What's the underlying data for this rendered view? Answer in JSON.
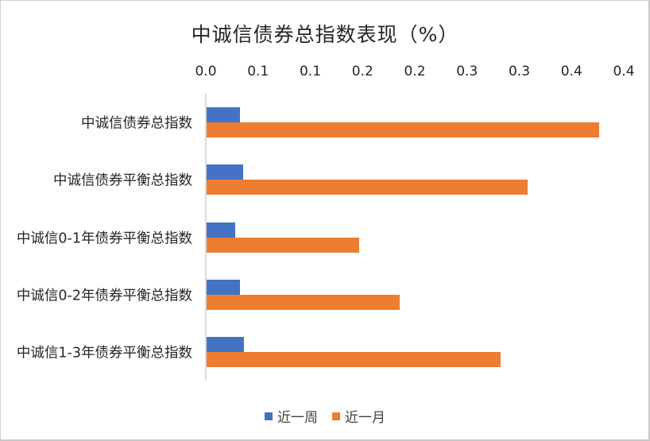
{
  "chart_data": {
    "type": "bar",
    "orientation": "horizontal",
    "title": "中诚信债券总指数表现（%）",
    "xlabel": "",
    "ylabel": "",
    "xlim": [
      0,
      0.4
    ],
    "x_ticks": [
      "0.0",
      "0.1",
      "0.1",
      "0.2",
      "0.2",
      "0.3",
      "0.3",
      "0.4",
      "0.4"
    ],
    "x_tick_values": [
      0.0,
      0.05,
      0.1,
      0.15,
      0.2,
      0.25,
      0.3,
      0.35,
      0.4
    ],
    "x_axis_position": "top",
    "grid": false,
    "legend_position": "bottom",
    "categories": [
      "中诚信债券总指数",
      "中诚信债券平衡总指数",
      "中诚信0-1年债券平衡总指数",
      "中诚信0-2年债券平衡总指数",
      "中诚信1-3年债券平衡总指数"
    ],
    "series": [
      {
        "name": "近一周",
        "color": "#4472C4",
        "values": [
          0.032,
          0.035,
          0.027,
          0.032,
          0.036
        ]
      },
      {
        "name": "近一月",
        "color": "#ED7D31",
        "values": [
          0.376,
          0.307,
          0.146,
          0.185,
          0.281
        ]
      }
    ]
  },
  "title": "中诚信债券总指数表现（%）",
  "legend": [
    {
      "label": "近一周",
      "color": "#4472C4"
    },
    {
      "label": "近一月",
      "color": "#ED7D31"
    }
  ],
  "x_axis": {
    "ticks": [
      "0.0",
      "0.1",
      "0.1",
      "0.2",
      "0.2",
      "0.3",
      "0.3",
      "0.4",
      "0.4"
    ]
  },
  "y_axis": {
    "labels": [
      "中诚信债券总指数",
      "中诚信债券平衡总指数",
      "中诚信0-1年债券平衡总指数",
      "中诚信0-2年债券平衡总指数",
      "中诚信1-3年债券平衡总指数"
    ]
  }
}
